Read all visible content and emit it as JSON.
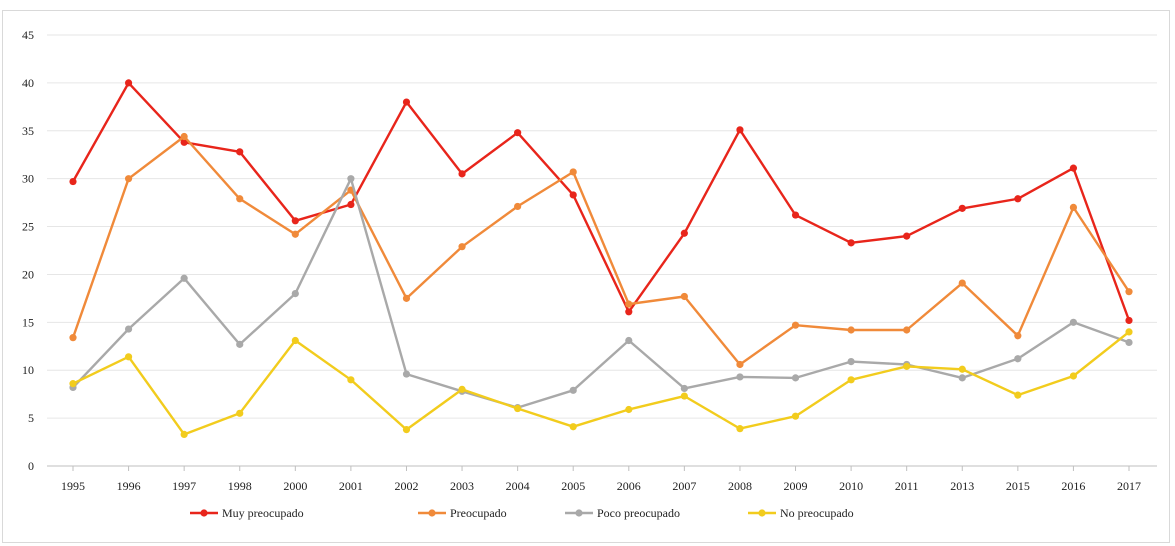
{
  "chart_data": {
    "type": "line",
    "categories": [
      "1995",
      "1996",
      "1997",
      "1998",
      "2000",
      "2001",
      "2002",
      "2003",
      "2004",
      "2005",
      "2006",
      "2007",
      "2008",
      "2009",
      "2010",
      "2011",
      "2013",
      "2015",
      "2016",
      "2017"
    ],
    "ylim": [
      0,
      45
    ],
    "yticks": [
      0,
      5,
      10,
      15,
      20,
      25,
      30,
      35,
      40,
      45
    ],
    "grid": true,
    "legend_position": "bottom",
    "series": [
      {
        "name": "Muy preocupado",
        "color": "#e8251b",
        "values": [
          29.7,
          40.0,
          33.8,
          32.8,
          25.6,
          27.3,
          38.0,
          30.5,
          34.8,
          28.3,
          16.1,
          24.3,
          35.1,
          26.2,
          23.3,
          24.0,
          26.9,
          27.9,
          31.1,
          15.2
        ]
      },
      {
        "name": "Preocupado",
        "color": "#f08a3a",
        "values": [
          13.4,
          30.0,
          34.4,
          27.9,
          24.2,
          28.8,
          17.5,
          22.9,
          27.1,
          30.7,
          16.9,
          17.7,
          10.6,
          14.7,
          14.2,
          14.2,
          19.1,
          13.6,
          27.0,
          18.2
        ]
      },
      {
        "name": "Poco preocupado",
        "color": "#a9a9a9",
        "values": [
          8.2,
          14.3,
          19.6,
          12.7,
          18.0,
          30.0,
          9.6,
          7.8,
          6.1,
          7.9,
          13.1,
          8.1,
          9.3,
          9.2,
          10.9,
          10.6,
          9.2,
          11.2,
          15.0,
          12.9
        ]
      },
      {
        "name": "No preocupado",
        "color": "#f2cc1d",
        "values": [
          8.6,
          11.4,
          3.3,
          5.5,
          13.1,
          9.0,
          3.8,
          8.0,
          6.0,
          4.1,
          5.9,
          7.3,
          3.9,
          5.2,
          9.0,
          10.4,
          10.1,
          7.4,
          9.4,
          14.0
        ]
      }
    ]
  }
}
